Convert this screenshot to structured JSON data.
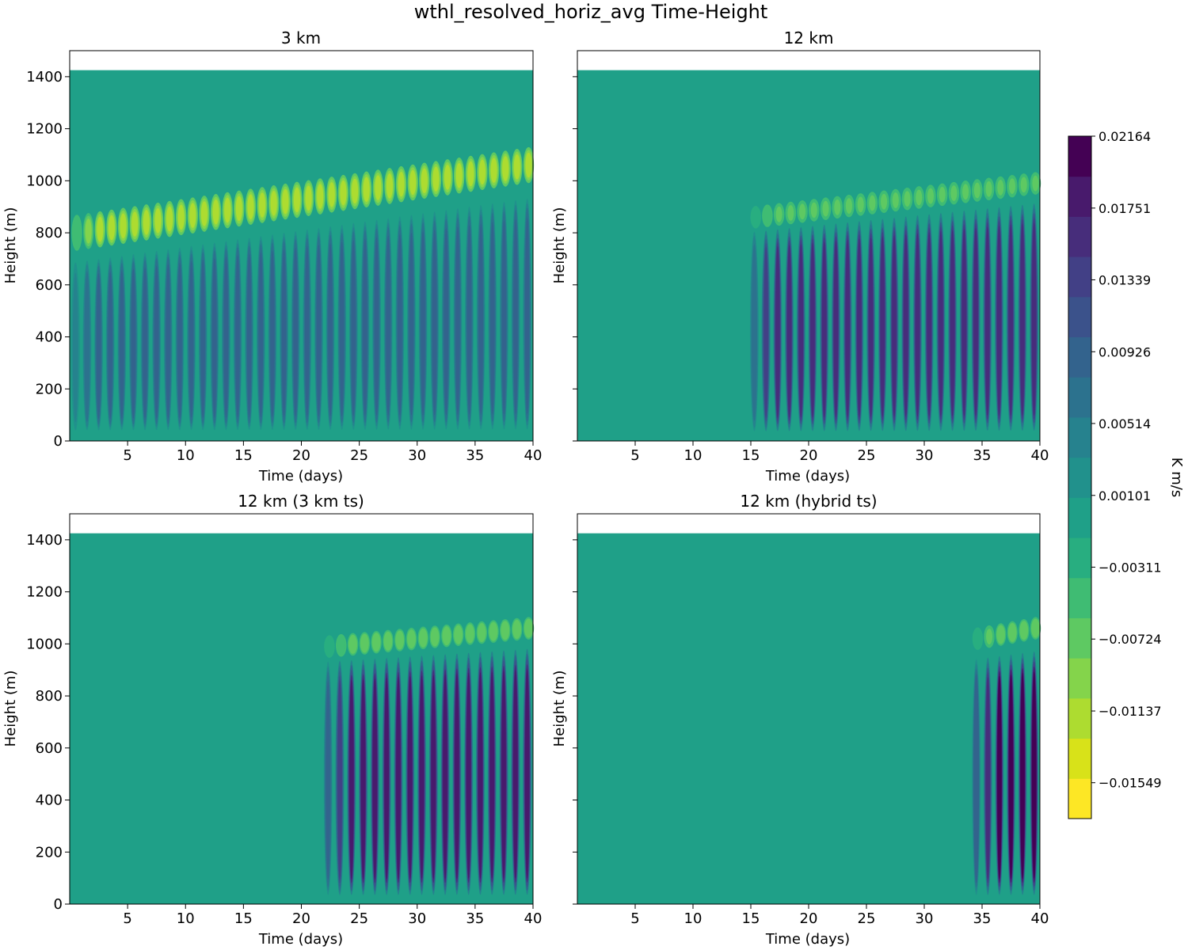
{
  "figure_title": "wthl_resolved_horiz_avg Time-Height",
  "chart_data": [
    {
      "type": "heatmap",
      "title": "3 km",
      "xlabel": "Time (days)",
      "ylabel": "Height (m)",
      "xlim": [
        0,
        40
      ],
      "ylim": [
        0,
        1500
      ],
      "xticks": [
        5,
        10,
        15,
        20,
        25,
        30,
        35,
        40
      ],
      "yticks": [
        0,
        200,
        400,
        600,
        800,
        1000,
        1200,
        1400
      ],
      "show_ytick_labels": true,
      "data_top_m": 1425,
      "background_value": 0,
      "onset_day": 0,
      "cycles": 40,
      "warm_layer": {
        "height_start_m": 800,
        "height_end_m": 1060,
        "depth_m": 160,
        "min_value": -0.012
      },
      "flux_column": {
        "bottom_m": 30,
        "top_start_m": 700,
        "top_end_m": 950,
        "max_value": 0.0085
      }
    },
    {
      "type": "heatmap",
      "title": "12 km",
      "xlabel": "Time (days)",
      "ylabel": "Height (m)",
      "xlim": [
        0,
        40
      ],
      "ylim": [
        0,
        1500
      ],
      "xticks": [
        5,
        10,
        15,
        20,
        25,
        30,
        35,
        40
      ],
      "yticks": [
        0,
        200,
        400,
        600,
        800,
        1000,
        1200,
        1400
      ],
      "show_ytick_labels": false,
      "data_top_m": 1425,
      "background_value": 0,
      "onset_day": 14.8,
      "cycles": 25,
      "warm_layer": {
        "height_start_m": 860,
        "height_end_m": 990,
        "depth_m": 100,
        "min_value": -0.0065
      },
      "flux_column": {
        "bottom_m": 25,
        "top_start_m": 820,
        "top_end_m": 930,
        "max_value": 0.0165
      }
    },
    {
      "type": "heatmap",
      "title": "12 km (3 km ts)",
      "xlabel": "Time (days)",
      "ylabel": "Height (m)",
      "xlim": [
        0,
        40
      ],
      "ylim": [
        0,
        1500
      ],
      "xticks": [
        5,
        10,
        15,
        20,
        25,
        30,
        35,
        40
      ],
      "yticks": [
        0,
        200,
        400,
        600,
        800,
        1000,
        1200,
        1400
      ],
      "show_ytick_labels": true,
      "data_top_m": 1425,
      "background_value": 0,
      "onset_day": 21.8,
      "cycles": 18,
      "warm_layer": {
        "height_start_m": 990,
        "height_end_m": 1060,
        "depth_m": 100,
        "min_value": -0.0075
      },
      "flux_column": {
        "bottom_m": 20,
        "top_start_m": 950,
        "top_end_m": 1000,
        "max_value": 0.0185
      }
    },
    {
      "type": "heatmap",
      "title": "12 km (hybrid ts)",
      "xlabel": "Time (days)",
      "ylabel": "Height (m)",
      "xlim": [
        0,
        40
      ],
      "ylim": [
        0,
        1500
      ],
      "xticks": [
        5,
        10,
        15,
        20,
        25,
        30,
        35,
        40
      ],
      "yticks": [
        0,
        200,
        400,
        600,
        800,
        1000,
        1200,
        1400
      ],
      "show_ytick_labels": false,
      "data_top_m": 1425,
      "background_value": 0,
      "onset_day": 34,
      "cycles": 6,
      "warm_layer": {
        "height_start_m": 1020,
        "height_end_m": 1060,
        "depth_m": 100,
        "min_value": -0.008
      },
      "flux_column": {
        "bottom_m": 20,
        "top_start_m": 960,
        "top_end_m": 990,
        "max_value": 0.021
      }
    }
  ],
  "colorbar": {
    "label": "K m/s",
    "min": -0.01755,
    "max": 0.02164,
    "levels": 19,
    "tick_values": [
      0.02164,
      0.01751,
      0.01339,
      0.00926,
      0.00514,
      0.00101,
      -0.00311,
      -0.00724,
      -0.01137,
      -0.01549
    ],
    "tick_labels": [
      "0.02164",
      "0.01751",
      "0.01339",
      "0.00926",
      "0.00514",
      "0.00101",
      "−0.00311",
      "−0.00724",
      "−0.01137",
      "−0.01549"
    ],
    "colors": [
      "#fde725",
      "#d8e219",
      "#addc30",
      "#84d44b",
      "#5ec962",
      "#3fbc73",
      "#28ae80",
      "#1fa088",
      "#21918c",
      "#26828e",
      "#2c728e",
      "#33638d",
      "#3b528b",
      "#424086",
      "#472d7b",
      "#481a6c",
      "#440154"
    ]
  }
}
